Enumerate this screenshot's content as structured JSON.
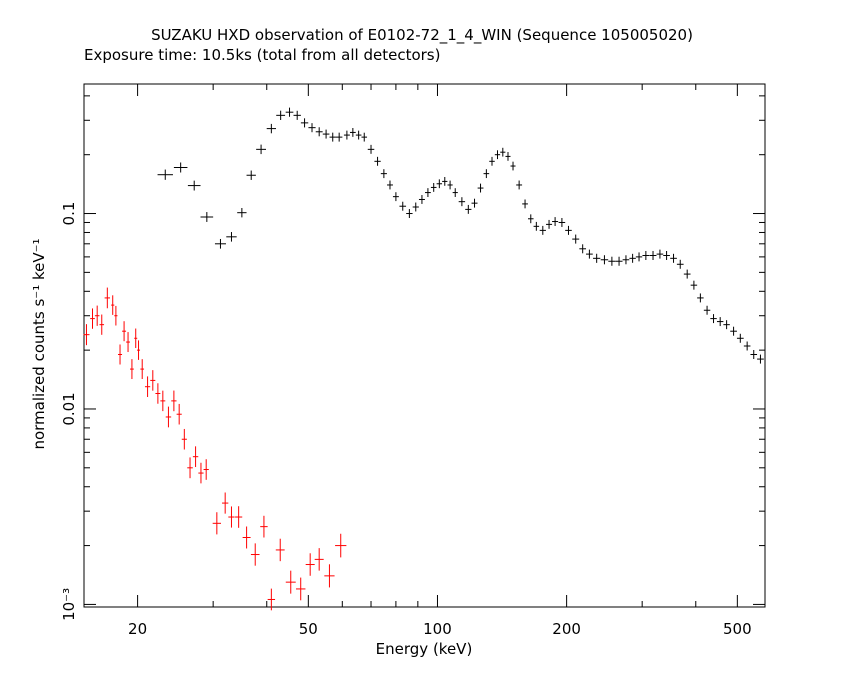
{
  "chart_data": {
    "type": "scatter",
    "title": "SUZAKU HXD observation of E0102-72_1_4_WIN (Sequence 105005020)",
    "subtitle": "Exposure time: 10.5ks (total from all detectors)",
    "xlabel": "Energy (keV)",
    "ylabel": "normalized counts s⁻¹ keV⁻¹",
    "xscale": "log",
    "yscale": "log",
    "xlim": [
      15,
      580
    ],
    "ylim": [
      0.00097,
      0.46
    ],
    "x_ticks": [
      {
        "value": 20,
        "label": "20"
      },
      {
        "value": 50,
        "label": "50"
      },
      {
        "value": 100,
        "label": "100"
      },
      {
        "value": 200,
        "label": "200"
      },
      {
        "value": 500,
        "label": "500"
      }
    ],
    "y_ticks": [
      {
        "value": 0.1,
        "label": "0.1"
      },
      {
        "value": 0.01,
        "label": "0.01"
      },
      {
        "value": 0.001,
        "label": "10⁻³"
      }
    ],
    "grid": false,
    "legend": "none",
    "series": [
      {
        "color": "#000000",
        "points": [
          [
            23.2,
            0.158
          ],
          [
            25.2,
            0.172
          ],
          [
            27.1,
            0.139
          ],
          [
            29.0,
            0.096
          ],
          [
            31.2,
            0.07
          ],
          [
            33.1,
            0.076
          ],
          [
            35.0,
            0.101
          ],
          [
            36.8,
            0.157
          ],
          [
            38.8,
            0.213
          ],
          [
            41.0,
            0.272
          ],
          [
            43.1,
            0.318
          ],
          [
            45.2,
            0.33
          ],
          [
            47.1,
            0.318
          ],
          [
            49.0,
            0.291
          ],
          [
            51.0,
            0.275
          ],
          [
            53.0,
            0.262
          ],
          [
            55.0,
            0.255
          ],
          [
            57.0,
            0.246
          ],
          [
            59.0,
            0.246
          ],
          [
            61.5,
            0.252
          ],
          [
            63.5,
            0.26
          ],
          [
            65.5,
            0.252
          ],
          [
            67.5,
            0.246
          ],
          [
            70.0,
            0.213
          ],
          [
            72.5,
            0.185
          ],
          [
            75.0,
            0.16
          ],
          [
            77.5,
            0.14
          ],
          [
            80.0,
            0.122
          ],
          [
            83.0,
            0.109
          ],
          [
            86.0,
            0.1
          ],
          [
            89.0,
            0.108
          ],
          [
            92.0,
            0.118
          ],
          [
            95.0,
            0.128
          ],
          [
            98.0,
            0.136
          ],
          [
            101.0,
            0.142
          ],
          [
            104.0,
            0.146
          ],
          [
            107.0,
            0.14
          ],
          [
            110.0,
            0.128
          ],
          [
            114.0,
            0.115
          ],
          [
            118.0,
            0.105
          ],
          [
            122.0,
            0.113
          ],
          [
            126.0,
            0.135
          ],
          [
            130.0,
            0.16
          ],
          [
            134.0,
            0.185
          ],
          [
            138.0,
            0.2
          ],
          [
            142.0,
            0.206
          ],
          [
            146.0,
            0.196
          ],
          [
            150.0,
            0.175
          ],
          [
            155.0,
            0.14
          ],
          [
            160.0,
            0.112
          ],
          [
            165.0,
            0.094
          ],
          [
            170.0,
            0.086
          ],
          [
            176.0,
            0.082
          ],
          [
            182.0,
            0.088
          ],
          [
            188.0,
            0.091
          ],
          [
            195.0,
            0.09
          ],
          [
            202.0,
            0.082
          ],
          [
            210.0,
            0.074
          ],
          [
            218.0,
            0.066
          ],
          [
            226.0,
            0.062
          ],
          [
            235.0,
            0.059
          ],
          [
            245.0,
            0.058
          ],
          [
            255.0,
            0.057
          ],
          [
            265.0,
            0.057
          ],
          [
            275.0,
            0.058
          ],
          [
            285.0,
            0.059
          ],
          [
            295.0,
            0.06
          ],
          [
            306.0,
            0.061
          ],
          [
            318.0,
            0.061
          ],
          [
            330.0,
            0.062
          ],
          [
            342.0,
            0.061
          ],
          [
            355.0,
            0.059
          ],
          [
            368.0,
            0.055
          ],
          [
            382.0,
            0.049
          ],
          [
            396.0,
            0.043
          ],
          [
            410.0,
            0.037
          ],
          [
            425.0,
            0.032
          ],
          [
            440.0,
            0.029
          ],
          [
            456.0,
            0.028
          ],
          [
            472.0,
            0.027
          ],
          [
            490.0,
            0.025
          ],
          [
            508.0,
            0.023
          ],
          [
            527.0,
            0.021
          ],
          [
            546.0,
            0.019
          ],
          [
            566.0,
            0.018
          ]
        ]
      },
      {
        "color": "#ff0000",
        "points": [
          [
            15.2,
            0.024
          ],
          [
            15.7,
            0.029
          ],
          [
            16.1,
            0.03
          ],
          [
            16.5,
            0.027
          ],
          [
            17.0,
            0.037
          ],
          [
            17.5,
            0.034
          ],
          [
            17.8,
            0.03
          ],
          [
            18.2,
            0.019
          ],
          [
            18.6,
            0.025
          ],
          [
            19.0,
            0.022
          ],
          [
            19.4,
            0.016
          ],
          [
            19.8,
            0.023
          ],
          [
            20.1,
            0.02
          ],
          [
            20.5,
            0.016
          ],
          [
            21.1,
            0.013
          ],
          [
            21.7,
            0.014
          ],
          [
            22.3,
            0.012
          ],
          [
            22.9,
            0.011
          ],
          [
            23.6,
            0.0091
          ],
          [
            24.3,
            0.011
          ],
          [
            25.0,
            0.0094
          ],
          [
            25.7,
            0.007
          ],
          [
            26.5,
            0.005
          ],
          [
            27.3,
            0.0057
          ],
          [
            28.1,
            0.0047
          ],
          [
            28.9,
            0.0049
          ],
          [
            30.6,
            0.0026
          ],
          [
            32.0,
            0.0033
          ],
          [
            33.1,
            0.0028
          ],
          [
            34.4,
            0.0028
          ],
          [
            35.9,
            0.0022
          ],
          [
            37.6,
            0.0018
          ],
          [
            39.4,
            0.0025
          ],
          [
            41.0,
            0.00106
          ],
          [
            43.0,
            0.0019
          ],
          [
            45.5,
            0.0013
          ],
          [
            48.0,
            0.0012
          ],
          [
            50.5,
            0.0016
          ],
          [
            53.0,
            0.0017
          ],
          [
            56.0,
            0.0014
          ],
          [
            59.5,
            0.002
          ]
        ]
      }
    ]
  }
}
